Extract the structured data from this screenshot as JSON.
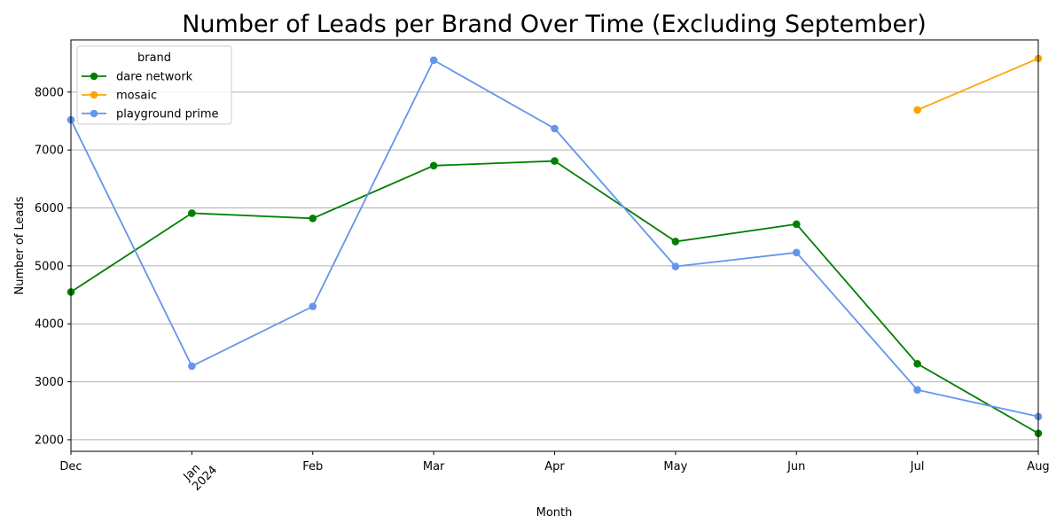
{
  "chart_data": {
    "type": "line",
    "title": "Number of Leads per Brand Over Time (Excluding September)",
    "xlabel": "Month",
    "ylabel": "Number of Leads",
    "categories": [
      "Dec",
      "Jan",
      "Feb",
      "Mar",
      "Apr",
      "May",
      "Jun",
      "Jul",
      "Aug"
    ],
    "year_label": "2024",
    "year_label_category": "Jan",
    "ylim": [
      1800,
      8900
    ],
    "yticks": [
      2000,
      3000,
      4000,
      5000,
      6000,
      7000,
      8000
    ],
    "grid": "horizontal",
    "legend": {
      "title": "brand",
      "placement": "top-left"
    },
    "series": [
      {
        "name": "dare network",
        "color": "#008000",
        "values": [
          4550,
          5910,
          5820,
          6730,
          6810,
          5420,
          5720,
          3310,
          2110
        ]
      },
      {
        "name": "mosaic",
        "color": "#ffa500",
        "values": [
          null,
          null,
          null,
          null,
          null,
          null,
          null,
          7690,
          8580
        ]
      },
      {
        "name": "playground prime",
        "color": "#6495ed",
        "values": [
          7520,
          3270,
          4300,
          8550,
          7370,
          4990,
          5230,
          2860,
          2400
        ]
      }
    ]
  }
}
